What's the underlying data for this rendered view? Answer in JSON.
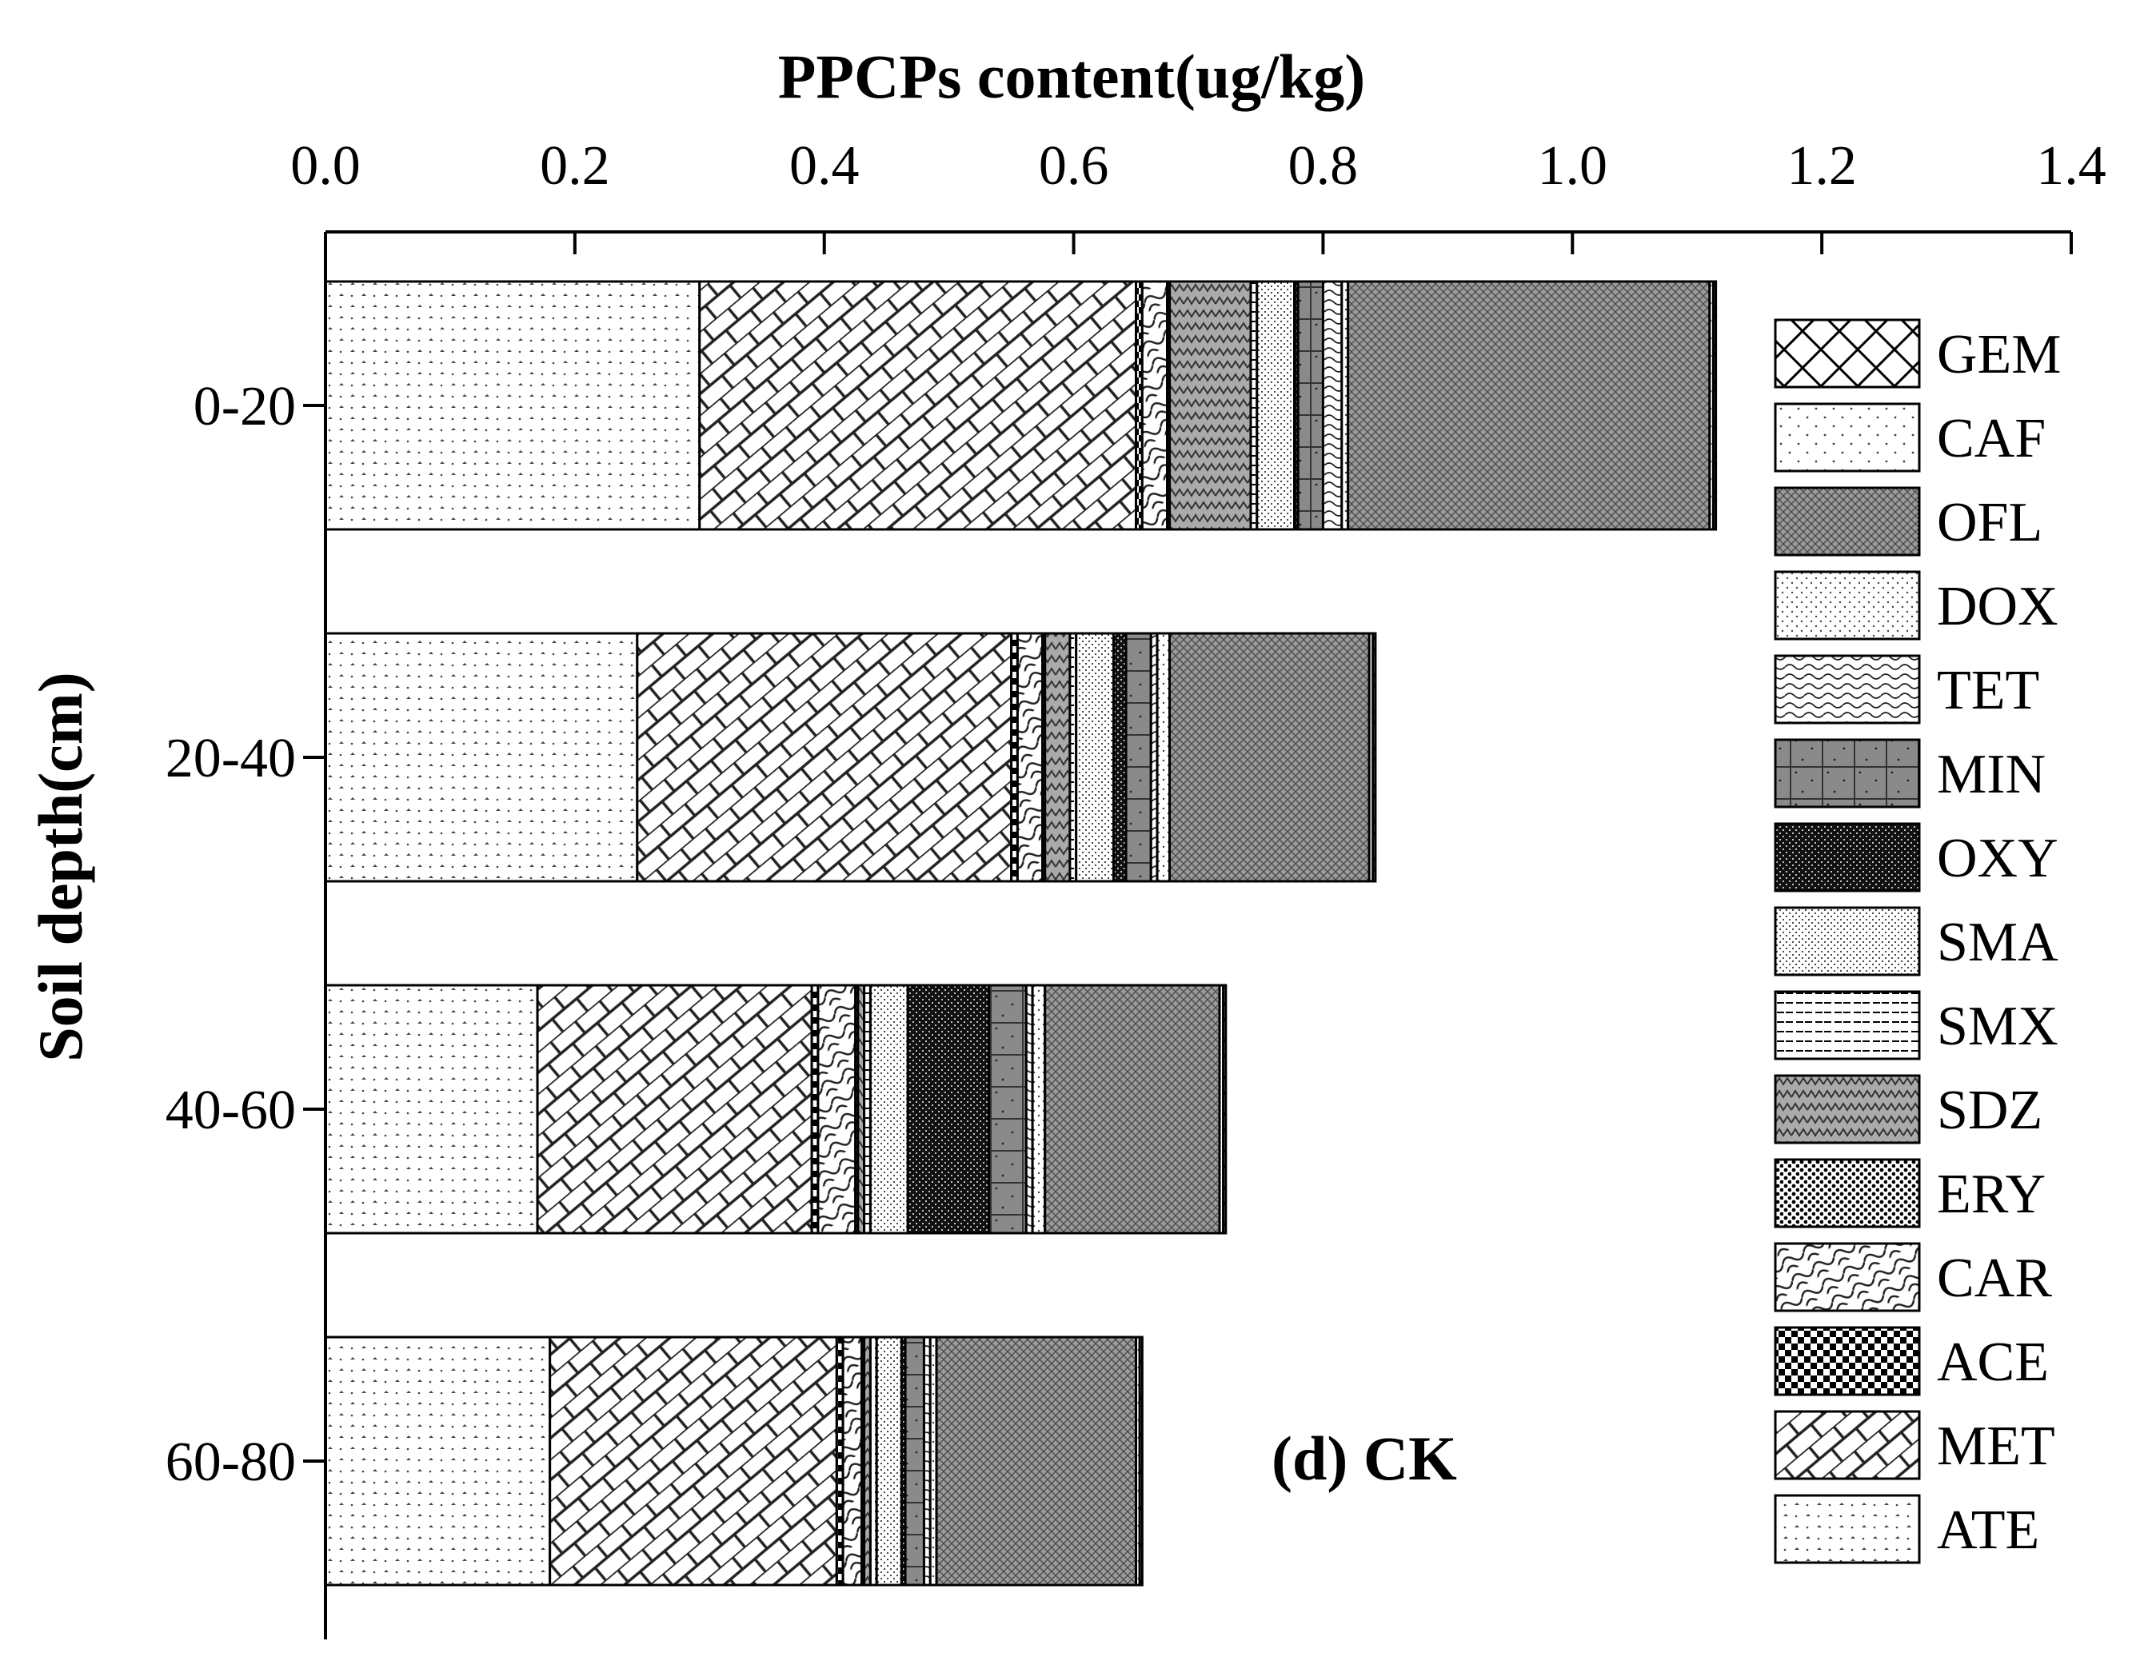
{
  "chart_data": {
    "type": "bar",
    "orientation": "horizontal",
    "stacked": true,
    "title": "PPCPs content(ug/kg)",
    "xlabel": "PPCPs content(ug/kg)",
    "ylabel": "Soil depth(cm)",
    "xlim": [
      0,
      1.4
    ],
    "xticks": [
      "0.0",
      "0.2",
      "0.4",
      "0.6",
      "0.8",
      "1.0",
      "1.2",
      "1.4"
    ],
    "categories": [
      "0-20",
      "20-40",
      "40-60",
      "60-80"
    ],
    "annotation": "(d) CK",
    "legend_position": "right",
    "series": [
      {
        "name": "ATE",
        "pattern": "ate",
        "values": [
          0.3,
          0.25,
          0.17,
          0.18
        ]
      },
      {
        "name": "MET",
        "pattern": "met",
        "values": [
          0.35,
          0.3,
          0.22,
          0.23
        ]
      },
      {
        "name": "ACE",
        "pattern": "ace",
        "values": [
          0.005,
          0.005,
          0.005,
          0.005
        ]
      },
      {
        "name": "CAR",
        "pattern": "car",
        "values": [
          0.02,
          0.02,
          0.03,
          0.015
        ]
      },
      {
        "name": "ERY",
        "pattern": "ery",
        "values": [
          0.002,
          0.002,
          0.002,
          0.002
        ]
      },
      {
        "name": "SDZ",
        "pattern": "sdz",
        "values": [
          0.065,
          0.02,
          0.005,
          0.005
        ]
      },
      {
        "name": "SMX",
        "pattern": "smx",
        "values": [
          0.005,
          0.005,
          0.005,
          0.005
        ]
      },
      {
        "name": "SMA",
        "pattern": "sma",
        "values": [
          0.03,
          0.03,
          0.03,
          0.02
        ]
      },
      {
        "name": "OXY",
        "pattern": "oxy",
        "values": [
          0.003,
          0.01,
          0.065,
          0.003
        ]
      },
      {
        "name": "MIN",
        "pattern": "min",
        "values": [
          0.02,
          0.02,
          0.03,
          0.015
        ]
      },
      {
        "name": "TET",
        "pattern": "tet",
        "values": [
          0.015,
          0.005,
          0.005,
          0.005
        ]
      },
      {
        "name": "DOX",
        "pattern": "dox",
        "values": [
          0.005,
          0.01,
          0.01,
          0.005
        ]
      },
      {
        "name": "OFL",
        "pattern": "ofl",
        "values": [
          0.29,
          0.16,
          0.14,
          0.16
        ]
      },
      {
        "name": "CAF",
        "pattern": "caf",
        "values": [
          0.003,
          0.003,
          0.003,
          0.003
        ]
      },
      {
        "name": "GEM",
        "pattern": "gem",
        "values": [
          0.002,
          0.002,
          0.002,
          0.002
        ]
      }
    ],
    "legend_order": [
      "GEM",
      "CAF",
      "OFL",
      "DOX",
      "TET",
      "MIN",
      "OXY",
      "SMA",
      "SMX",
      "SDZ",
      "ERY",
      "CAR",
      "ACE",
      "MET",
      "ATE"
    ]
  }
}
